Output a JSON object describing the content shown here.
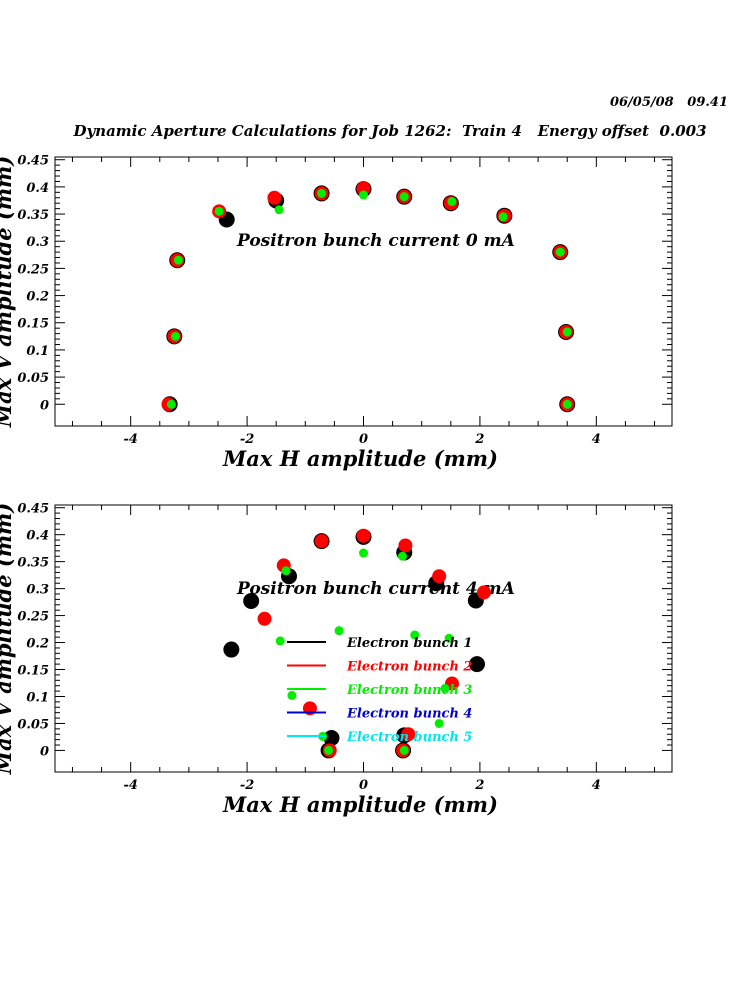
{
  "header": {
    "timestamp": "06/05/08   09.41",
    "title": "Dynamic Aperture Calculations for Job 1262:  Train 4   Energy offset  0.003"
  },
  "colors": {
    "bunch1": "#000000",
    "bunch2": "#ff0000",
    "bunch3": "#00ee00",
    "bunch4": "#0000cc",
    "bunch5": "#00e5ee"
  },
  "chart_data": [
    {
      "type": "scatter",
      "xlabel": "Max H amplitude (mm)",
      "ylabel": "Max V amplitude (mm)",
      "xlim": [
        -5.3,
        5.3
      ],
      "ylim": [
        -0.04,
        0.455
      ],
      "xticks": [
        -4,
        -2,
        0,
        2,
        4
      ],
      "yticks": [
        0,
        0.05,
        0.1,
        0.15,
        0.2,
        0.25,
        0.3,
        0.35,
        0.4,
        0.45
      ],
      "annotation": "Positron bunch current  0 mA",
      "series": [
        {
          "name": "Electron bunch 1",
          "color": "#000000",
          "size": 8,
          "points": [
            [
              -3.33,
              0.0
            ],
            [
              -3.25,
              0.125
            ],
            [
              -3.2,
              0.265
            ],
            [
              -2.35,
              0.34
            ],
            [
              -1.5,
              0.375
            ],
            [
              -0.72,
              0.388
            ],
            [
              0.0,
              0.396
            ],
            [
              0.7,
              0.382
            ],
            [
              1.5,
              0.37
            ],
            [
              2.42,
              0.347
            ],
            [
              3.38,
              0.28
            ],
            [
              3.48,
              0.133
            ],
            [
              3.5,
              0.0
            ]
          ]
        },
        {
          "name": "Electron bunch 2",
          "color": "#ff0000",
          "size": 7,
          "points": [
            [
              -3.35,
              0.0
            ],
            [
              -3.25,
              0.125
            ],
            [
              -3.2,
              0.265
            ],
            [
              -2.48,
              0.355
            ],
            [
              -1.53,
              0.38
            ],
            [
              -0.72,
              0.388
            ],
            [
              0.0,
              0.397
            ],
            [
              0.7,
              0.382
            ],
            [
              1.5,
              0.37
            ],
            [
              2.42,
              0.347
            ],
            [
              3.38,
              0.28
            ],
            [
              3.48,
              0.133
            ],
            [
              3.5,
              0.0
            ]
          ]
        },
        {
          "name": "Electron bunch 3",
          "color": "#00ee00",
          "size": 4.5,
          "points": [
            [
              -3.3,
              0.0
            ],
            [
              -3.23,
              0.125
            ],
            [
              -3.18,
              0.265
            ],
            [
              -2.48,
              0.355
            ],
            [
              -1.45,
              0.358
            ],
            [
              -0.72,
              0.388
            ],
            [
              0.0,
              0.385
            ],
            [
              0.7,
              0.382
            ],
            [
              1.52,
              0.373
            ],
            [
              2.4,
              0.345
            ],
            [
              3.38,
              0.28
            ],
            [
              3.5,
              0.133
            ],
            [
              3.5,
              0.0
            ]
          ]
        }
      ]
    },
    {
      "type": "scatter",
      "xlabel": "Max H amplitude (mm)",
      "ylabel": "Max V amplitude (mm)",
      "xlim": [
        -5.3,
        5.3
      ],
      "ylim": [
        -0.04,
        0.455
      ],
      "xticks": [
        -4,
        -2,
        0,
        2,
        4
      ],
      "yticks": [
        0,
        0.05,
        0.1,
        0.15,
        0.2,
        0.25,
        0.3,
        0.35,
        0.4,
        0.45
      ],
      "annotation": "Positron bunch current  4 mA",
      "legend": [
        "Electron bunch 1",
        "Electron bunch 2",
        "Electron bunch 3",
        "Electron bunch 4",
        "Electron bunch 5"
      ],
      "series": [
        {
          "name": "Electron bunch 1",
          "color": "#000000",
          "size": 8,
          "points": [
            [
              -2.27,
              0.187
            ],
            [
              -1.93,
              0.277
            ],
            [
              -1.28,
              0.323
            ],
            [
              -0.72,
              0.388
            ],
            [
              0.0,
              0.396
            ],
            [
              0.7,
              0.367
            ],
            [
              1.25,
              0.31
            ],
            [
              1.93,
              0.278
            ],
            [
              1.95,
              0.16
            ],
            [
              0.7,
              0.028
            ],
            [
              -0.55,
              0.023
            ],
            [
              -0.6,
              0.0
            ],
            [
              0.68,
              0.0
            ]
          ]
        },
        {
          "name": "Electron bunch 2",
          "color": "#ff0000",
          "size": 7,
          "points": [
            [
              -1.37,
              0.343
            ],
            [
              -1.7,
              0.244
            ],
            [
              -0.72,
              0.388
            ],
            [
              0.0,
              0.398
            ],
            [
              0.72,
              0.38
            ],
            [
              1.3,
              0.323
            ],
            [
              2.07,
              0.293
            ],
            [
              1.52,
              0.124
            ],
            [
              -0.92,
              0.078
            ],
            [
              0.77,
              0.03
            ],
            [
              -0.58,
              0.0
            ],
            [
              0.68,
              0.0
            ]
          ]
        },
        {
          "name": "Electron bunch 3",
          "color": "#00ee00",
          "size": 4.5,
          "points": [
            [
              -1.33,
              0.333
            ],
            [
              -1.43,
              0.203
            ],
            [
              -0.42,
              0.222
            ],
            [
              0.0,
              0.366
            ],
            [
              0.67,
              0.36
            ],
            [
              0.88,
              0.214
            ],
            [
              1.47,
              0.208
            ],
            [
              -1.23,
              0.102
            ],
            [
              1.4,
              0.115
            ],
            [
              1.3,
              0.05
            ],
            [
              -0.7,
              0.026
            ],
            [
              -0.6,
              0.0
            ],
            [
              0.7,
              0.0
            ]
          ]
        }
      ]
    }
  ]
}
